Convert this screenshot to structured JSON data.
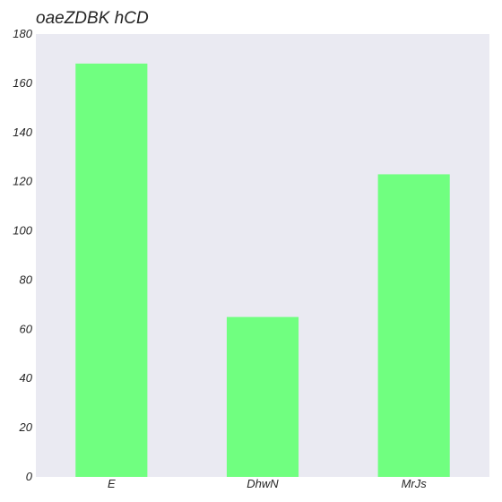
{
  "chart_data": {
    "type": "bar",
    "title": "oaeZDBK hCD",
    "categories": [
      "E",
      "DhwN",
      "MrJs"
    ],
    "values": [
      168,
      65,
      123
    ],
    "xlabel": "",
    "ylabel": "",
    "ylim": [
      0,
      180
    ],
    "yticks": [
      0,
      20,
      40,
      60,
      80,
      100,
      120,
      140,
      160,
      180
    ],
    "grid": false,
    "legend": "none",
    "colors": {
      "bar": "#70ff80",
      "plot_background": "#eaeaf2",
      "text": "#262626"
    }
  }
}
